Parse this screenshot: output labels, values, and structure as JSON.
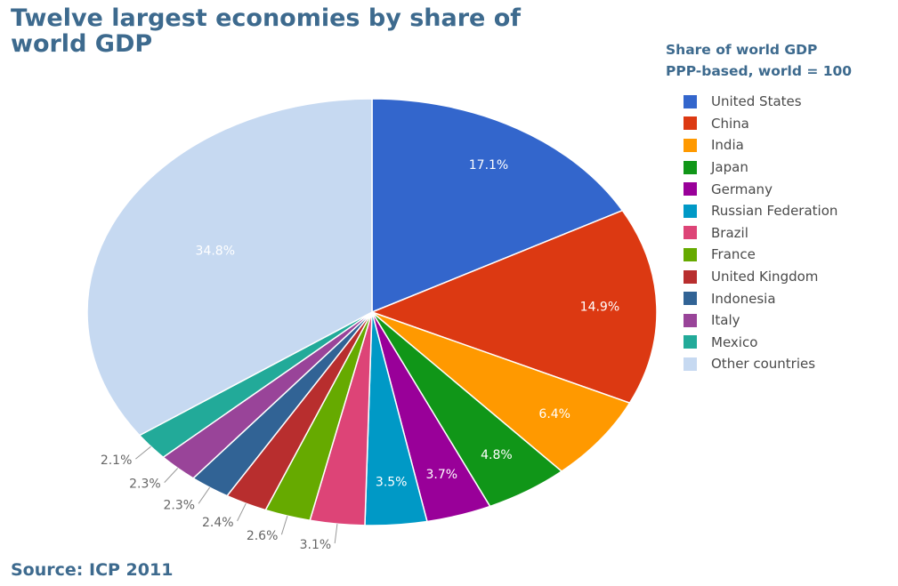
{
  "title": "Twelve largest economies by share of world GDP",
  "source": "Source: ICP 2011",
  "legend": {
    "title_line1": "Share of world GDP",
    "title_line2": "PPP-based, world = 100"
  },
  "chart_data": {
    "type": "pie",
    "title": "Twelve largest economies by share of world GDP",
    "legend_title": "Share of world GDP PPP-based, world = 100",
    "legend_position": "right",
    "slices": [
      {
        "label": "United States",
        "value": 17.1,
        "display": "17.1%",
        "color": "#3366cc"
      },
      {
        "label": "China",
        "value": 14.9,
        "display": "14.9%",
        "color": "#dc3912"
      },
      {
        "label": "India",
        "value": 6.4,
        "display": "6.4%",
        "color": "#ff9900"
      },
      {
        "label": "Japan",
        "value": 4.8,
        "display": "4.8%",
        "color": "#109618"
      },
      {
        "label": "Germany",
        "value": 3.7,
        "display": "3.7%",
        "color": "#990099"
      },
      {
        "label": "Russian Federation",
        "value": 3.5,
        "display": "3.5%",
        "color": "#0099c6"
      },
      {
        "label": "Brazil",
        "value": 3.1,
        "display": "3.1%",
        "color": "#dd4477"
      },
      {
        "label": "France",
        "value": 2.6,
        "display": "2.6%",
        "color": "#66aa00"
      },
      {
        "label": "United Kingdom",
        "value": 2.4,
        "display": "2.4%",
        "color": "#b82e2e"
      },
      {
        "label": "Indonesia",
        "value": 2.3,
        "display": "2.3%",
        "color": "#316395"
      },
      {
        "label": "Italy",
        "value": 2.3,
        "display": "2.3%",
        "color": "#994499"
      },
      {
        "label": "Mexico",
        "value": 2.1,
        "display": "2.1%",
        "color": "#22aa99"
      },
      {
        "label": "Other countries",
        "value": 34.8,
        "display": "34.8%",
        "color": "#c6d9f1"
      }
    ]
  }
}
